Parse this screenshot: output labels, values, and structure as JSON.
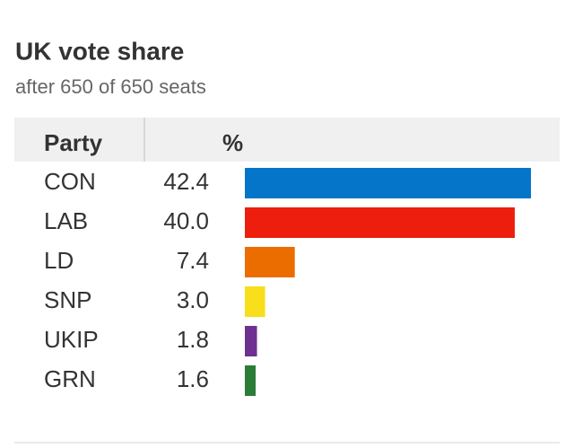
{
  "chart_data": {
    "type": "bar",
    "orientation": "horizontal",
    "title": "UK vote share",
    "subtitle": "after 650 of 650 seats",
    "column_headers": [
      "Party",
      "%"
    ],
    "categories": [
      "CON",
      "LAB",
      "LD",
      "SNP",
      "UKIP",
      "GRN"
    ],
    "values": [
      42.4,
      40,
      7.4,
      3,
      1.8,
      1.6
    ],
    "value_labels": [
      "42.4",
      "40.0",
      "7.4",
      "3.0",
      "1.8",
      "1.6"
    ],
    "colors": [
      "#0575c9",
      "#ed1e0e",
      "#eb6d00",
      "#f8de1b",
      "#6e3190",
      "#2b7c36"
    ]
  }
}
